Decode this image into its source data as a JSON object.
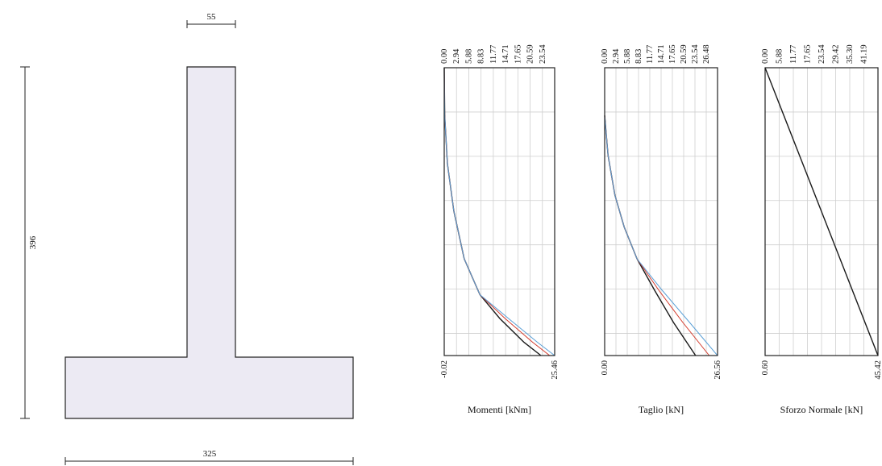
{
  "section": {
    "dims": {
      "stem_width": "55",
      "height": "396",
      "base_width": "325"
    },
    "colors": {
      "fill": "#eceaf3",
      "stroke": "#222222"
    }
  },
  "chart_data": [
    {
      "type": "line",
      "title": "Momenti [kNm]",
      "top_ticks": [
        "0.00",
        "2.94",
        "5.88",
        "8.83",
        "11.77",
        "14.71",
        "17.65",
        "20.59",
        "23.54"
      ],
      "bottom_min": "-0.02",
      "bottom_max": "25.46",
      "xlim": [
        -0.02,
        25.46
      ],
      "ylim": [
        0,
        3.96
      ],
      "series": [
        {
          "color": "#1a1a1a",
          "x": [
            -0.02,
            0.1,
            0.7,
            2.2,
            4.6,
            8.2,
            12.8,
            18.4,
            22.3
          ],
          "y": [
            0,
            0.6,
            1.2,
            1.8,
            2.4,
            2.85,
            3.15,
            3.45,
            3.64
          ]
        },
        {
          "color": "#d33a2c",
          "x": [
            -0.02,
            0.1,
            0.7,
            2.2,
            4.6,
            8.2,
            14.0,
            20.4,
            24.3
          ],
          "y": [
            0,
            0.6,
            1.2,
            1.8,
            2.4,
            2.85,
            3.15,
            3.45,
            3.64
          ]
        },
        {
          "color": "#5a9fd6",
          "x": [
            -0.02,
            0.1,
            0.7,
            2.2,
            4.6,
            8.2,
            14.8,
            21.5,
            25.46
          ],
          "y": [
            0,
            0.6,
            1.2,
            1.8,
            2.4,
            2.85,
            3.15,
            3.45,
            3.64
          ]
        }
      ]
    },
    {
      "type": "line",
      "title": "Taglio [kN]",
      "top_ticks": [
        "0.00",
        "2.94",
        "5.88",
        "8.83",
        "11.77",
        "14.71",
        "17.65",
        "20.59",
        "23.54",
        "26.48"
      ],
      "bottom_min": "0.00",
      "bottom_max": "26.56",
      "xlim": [
        0,
        26.56
      ],
      "ylim": [
        0,
        3.96
      ],
      "series": [
        {
          "color": "#1a1a1a",
          "x": [
            0,
            0.8,
            2.4,
            4.6,
            7.6,
            11.8,
            16.2,
            21.4
          ],
          "y": [
            0.6,
            1.1,
            1.6,
            2.0,
            2.4,
            2.8,
            3.2,
            3.64
          ]
        },
        {
          "color": "#d33a2c",
          "x": [
            0,
            0.8,
            2.4,
            4.6,
            7.6,
            12.8,
            18.4,
            24.6
          ],
          "y": [
            0.6,
            1.1,
            1.6,
            2.0,
            2.4,
            2.8,
            3.2,
            3.64
          ]
        },
        {
          "color": "#5a9fd6",
          "x": [
            0,
            0.8,
            2.4,
            4.6,
            7.6,
            13.6,
            20.0,
            26.56
          ],
          "y": [
            0.6,
            1.1,
            1.6,
            2.0,
            2.4,
            2.8,
            3.2,
            3.64
          ]
        }
      ]
    },
    {
      "type": "line",
      "title": "Sforzo Normale [kN]",
      "top_ticks": [
        "0.00",
        "5.88",
        "11.77",
        "17.65",
        "23.54",
        "29.42",
        "35.30",
        "41.19"
      ],
      "bottom_min": "0.60",
      "bottom_max": "45.42",
      "xlim": [
        0.6,
        45.42
      ],
      "ylim": [
        0,
        3.96
      ],
      "series": [
        {
          "color": "#1a1a1a",
          "x": [
            0.6,
            45.42
          ],
          "y": [
            0,
            3.64
          ]
        }
      ]
    }
  ]
}
